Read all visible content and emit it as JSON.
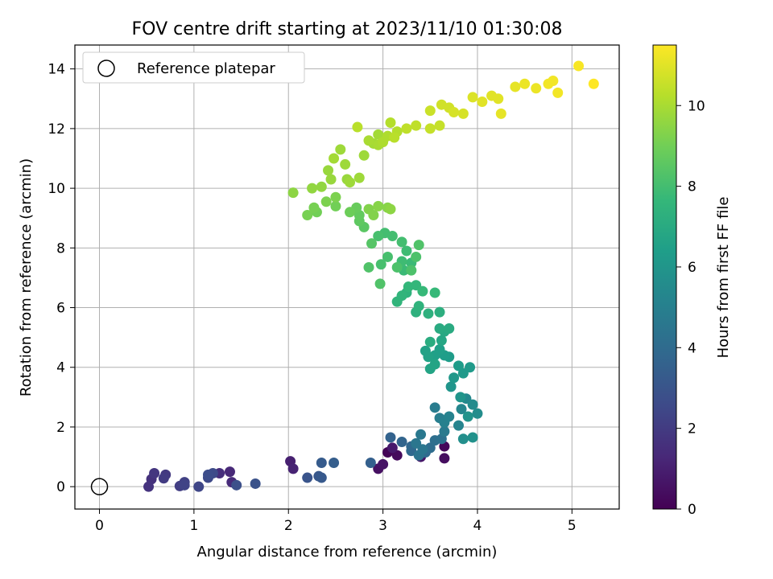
{
  "chart_data": {
    "type": "scatter",
    "title": "FOV centre drift starting at 2023/11/10 01:30:08",
    "xlabel": "Angular distance from reference (arcmin)",
    "ylabel": "Rotation from reference (arcmin)",
    "xlim": [
      -0.26,
      5.5
    ],
    "ylim": [
      -0.75,
      14.8
    ],
    "xticks": [
      0,
      1,
      2,
      3,
      4,
      5
    ],
    "yticks": [
      0,
      2,
      4,
      6,
      8,
      10,
      12,
      14
    ],
    "grid": true,
    "legend": {
      "placement": "top-left",
      "entries": [
        "Reference platepar"
      ]
    },
    "reference_point": {
      "x": 0,
      "y": 0
    },
    "colorbar": {
      "label": "Hours from first FF file",
      "colormap": "viridis",
      "range": [
        0,
        11.5
      ],
      "ticks": [
        0,
        2,
        4,
        6,
        8,
        10
      ],
      "colors": [
        "#440154",
        "#482878",
        "#3e4a89",
        "#31688e",
        "#26828e",
        "#1f9e89",
        "#35b779",
        "#6ece58",
        "#b5de2b",
        "#fde725"
      ]
    },
    "points": [
      [
        3.05,
        1.15,
        0.1
      ],
      [
        3.15,
        1.05,
        0.3
      ],
      [
        3.65,
        1.35,
        0.2
      ],
      [
        3.65,
        0.95,
        0.4
      ],
      [
        2.95,
        0.6,
        0.5
      ],
      [
        3.0,
        0.75,
        0.6
      ],
      [
        3.4,
        1.0,
        0.7
      ],
      [
        3.1,
        1.3,
        0.8
      ],
      [
        2.02,
        0.85,
        1.0
      ],
      [
        2.05,
        0.6,
        1.1
      ],
      [
        1.38,
        0.5,
        1.3
      ],
      [
        1.4,
        0.15,
        1.4
      ],
      [
        1.27,
        0.45,
        1.5
      ],
      [
        0.55,
        0.25,
        1.6
      ],
      [
        0.52,
        0.0,
        1.7
      ],
      [
        0.58,
        0.45,
        1.8
      ],
      [
        0.7,
        0.4,
        1.9
      ],
      [
        0.68,
        0.28,
        2.0
      ],
      [
        0.85,
        0.02,
        2.1
      ],
      [
        0.9,
        0.15,
        2.2
      ],
      [
        0.9,
        0.05,
        2.3
      ],
      [
        1.05,
        0.0,
        2.4
      ],
      [
        1.15,
        0.3,
        2.5
      ],
      [
        1.2,
        0.45,
        2.6
      ],
      [
        1.15,
        0.4,
        2.7
      ],
      [
        1.45,
        0.05,
        2.8
      ],
      [
        1.65,
        0.1,
        2.9
      ],
      [
        2.2,
        0.3,
        3.0
      ],
      [
        2.32,
        0.35,
        3.1
      ],
      [
        2.35,
        0.3,
        3.2
      ],
      [
        2.35,
        0.8,
        3.3
      ],
      [
        2.48,
        0.8,
        3.4
      ],
      [
        2.87,
        0.8,
        3.5
      ],
      [
        3.08,
        1.65,
        3.6
      ],
      [
        3.2,
        1.5,
        3.7
      ],
      [
        3.3,
        1.35,
        3.8
      ],
      [
        3.3,
        1.2,
        3.9
      ],
      [
        3.45,
        1.15,
        4.0
      ],
      [
        3.5,
        1.3,
        4.1
      ],
      [
        3.55,
        1.55,
        4.2
      ],
      [
        3.62,
        1.6,
        4.3
      ],
      [
        3.38,
        1.05,
        4.4
      ],
      [
        3.42,
        1.25,
        4.5
      ],
      [
        3.35,
        1.45,
        4.5
      ],
      [
        3.4,
        1.75,
        4.6
      ],
      [
        3.65,
        1.85,
        4.7
      ],
      [
        3.55,
        2.65,
        4.8
      ],
      [
        3.6,
        2.3,
        4.9
      ],
      [
        3.65,
        2.15,
        5.0
      ],
      [
        3.7,
        2.35,
        5.1
      ],
      [
        3.8,
        2.05,
        5.2
      ],
      [
        3.83,
        2.6,
        5.3
      ],
      [
        3.88,
        2.95,
        5.4
      ],
      [
        3.95,
        2.75,
        5.5
      ],
      [
        4.0,
        2.45,
        5.6
      ],
      [
        3.85,
        1.6,
        5.7
      ],
      [
        3.95,
        1.65,
        5.8
      ],
      [
        3.9,
        2.35,
        5.9
      ],
      [
        3.82,
        3.0,
        6.0
      ],
      [
        3.72,
        3.35,
        6.0
      ],
      [
        3.75,
        3.65,
        6.1
      ],
      [
        3.85,
        3.8,
        6.2
      ],
      [
        3.92,
        4.0,
        6.2
      ],
      [
        3.8,
        4.05,
        6.3
      ],
      [
        3.7,
        4.35,
        6.3
      ],
      [
        3.65,
        4.4,
        6.4
      ],
      [
        3.6,
        4.6,
        6.5
      ],
      [
        3.55,
        4.4,
        6.5
      ],
      [
        3.45,
        4.55,
        6.6
      ],
      [
        3.48,
        4.35,
        6.6
      ],
      [
        3.5,
        3.95,
        6.7
      ],
      [
        3.55,
        4.1,
        6.7
      ],
      [
        3.62,
        4.9,
        6.8
      ],
      [
        3.65,
        5.2,
        6.9
      ],
      [
        3.7,
        5.3,
        7.0
      ],
      [
        3.6,
        5.3,
        7.0
      ],
      [
        3.5,
        4.85,
        7.1
      ],
      [
        3.6,
        5.85,
        7.2
      ],
      [
        3.48,
        5.8,
        7.3
      ],
      [
        3.35,
        5.85,
        7.3
      ],
      [
        3.38,
        6.05,
        7.4
      ],
      [
        3.25,
        6.5,
        7.4
      ],
      [
        3.15,
        6.2,
        7.5
      ],
      [
        3.2,
        6.4,
        7.5
      ],
      [
        3.27,
        6.7,
        7.6
      ],
      [
        3.35,
        6.75,
        7.6
      ],
      [
        3.42,
        6.55,
        7.7
      ],
      [
        3.55,
        6.5,
        7.7
      ],
      [
        3.22,
        7.25,
        7.8
      ],
      [
        3.3,
        7.5,
        7.8
      ],
      [
        3.2,
        7.55,
        7.9
      ],
      [
        3.25,
        7.9,
        7.9
      ],
      [
        3.2,
        8.2,
        8.0
      ],
      [
        3.1,
        8.4,
        8.0
      ],
      [
        3.02,
        8.5,
        8.0
      ],
      [
        2.95,
        8.4,
        8.1
      ],
      [
        3.05,
        7.7,
        8.1
      ],
      [
        2.98,
        7.45,
        8.1
      ],
      [
        3.15,
        7.35,
        8.2
      ],
      [
        3.3,
        7.25,
        8.2
      ],
      [
        3.35,
        7.7,
        8.2
      ],
      [
        3.38,
        8.1,
        8.3
      ],
      [
        2.85,
        7.35,
        8.3
      ],
      [
        2.97,
        6.8,
        8.3
      ],
      [
        2.88,
        8.15,
        8.4
      ],
      [
        2.8,
        8.7,
        8.5
      ],
      [
        2.75,
        8.9,
        8.6
      ],
      [
        2.75,
        9.1,
        8.7
      ],
      [
        2.72,
        9.35,
        8.8
      ],
      [
        2.65,
        9.2,
        8.9
      ],
      [
        2.5,
        9.4,
        9.0
      ],
      [
        2.3,
        9.2,
        9.0
      ],
      [
        2.2,
        9.1,
        9.1
      ],
      [
        2.27,
        9.35,
        9.1
      ],
      [
        2.4,
        9.55,
        9.2
      ],
      [
        2.5,
        9.7,
        9.2
      ],
      [
        2.85,
        9.3,
        9.3
      ],
      [
        2.9,
        9.1,
        9.3
      ],
      [
        2.95,
        9.4,
        9.4
      ],
      [
        3.05,
        9.35,
        9.4
      ],
      [
        3.08,
        9.3,
        9.5
      ],
      [
        2.05,
        9.85,
        9.5
      ],
      [
        2.25,
        10.0,
        9.6
      ],
      [
        2.35,
        10.05,
        9.6
      ],
      [
        2.45,
        10.3,
        9.7
      ],
      [
        2.62,
        10.3,
        9.7
      ],
      [
        2.65,
        10.2,
        9.8
      ],
      [
        2.75,
        10.35,
        9.8
      ],
      [
        2.8,
        11.1,
        9.8
      ],
      [
        2.9,
        11.5,
        9.9
      ],
      [
        2.95,
        11.8,
        9.9
      ],
      [
        2.85,
        11.6,
        10.0
      ],
      [
        2.95,
        11.45,
        10.0
      ],
      [
        3.0,
        11.55,
        10.1
      ],
      [
        3.05,
        11.75,
        10.1
      ],
      [
        3.08,
        12.2,
        10.2
      ],
      [
        3.15,
        11.9,
        10.2
      ],
      [
        2.73,
        12.05,
        10.3
      ],
      [
        3.12,
        11.7,
        10.3
      ],
      [
        3.25,
        12.0,
        10.4
      ],
      [
        3.35,
        12.1,
        10.4
      ],
      [
        3.5,
        12.0,
        10.5
      ],
      [
        3.6,
        12.1,
        10.5
      ],
      [
        3.5,
        12.6,
        10.6
      ],
      [
        3.62,
        12.8,
        10.7
      ],
      [
        3.7,
        12.7,
        10.7
      ],
      [
        3.75,
        12.55,
        10.8
      ],
      [
        3.85,
        12.5,
        10.8
      ],
      [
        3.95,
        13.05,
        10.9
      ],
      [
        4.05,
        12.9,
        11.0
      ],
      [
        4.15,
        13.1,
        11.0
      ],
      [
        4.22,
        13.0,
        11.0
      ],
      [
        4.25,
        12.5,
        11.1
      ],
      [
        4.4,
        13.4,
        11.1
      ],
      [
        4.5,
        13.5,
        11.2
      ],
      [
        4.62,
        13.35,
        11.2
      ],
      [
        4.75,
        13.5,
        11.3
      ],
      [
        4.8,
        13.6,
        11.3
      ],
      [
        4.85,
        13.2,
        11.3
      ],
      [
        5.07,
        14.1,
        11.4
      ],
      [
        5.23,
        13.5,
        11.5
      ],
      [
        2.48,
        11.0,
        9.9
      ],
      [
        2.6,
        10.8,
        9.8
      ],
      [
        2.42,
        10.6,
        9.7
      ],
      [
        2.55,
        11.3,
        9.8
      ]
    ]
  }
}
